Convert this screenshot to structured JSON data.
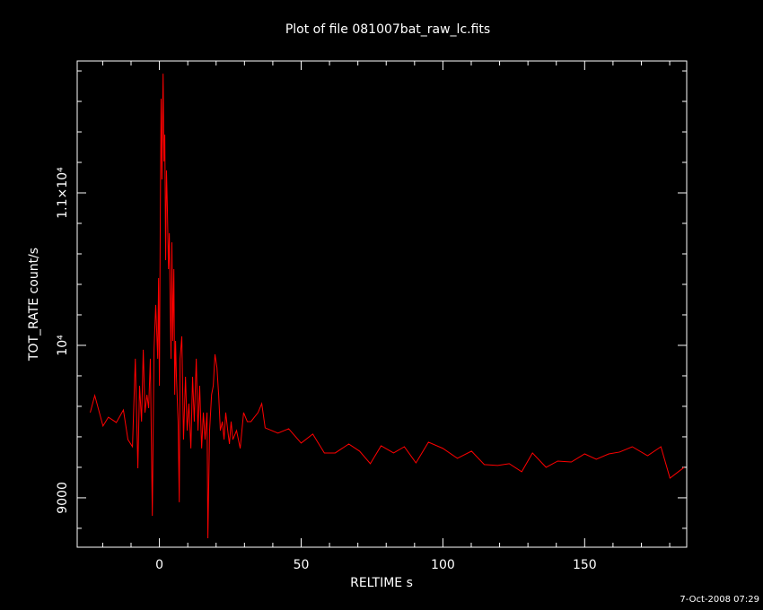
{
  "chart_data": {
    "type": "line",
    "title": "Plot of file 081007bat_raw_lc.fits",
    "x_label": "RELTIME  s",
    "y_label": "TOT_RATE  count/s",
    "timestamp": "7-Oct-2008 07:29",
    "xlim": [
      -29,
      186
    ],
    "ylim": [
      8676,
      11865
    ],
    "xticks": [
      0,
      50,
      100,
      150
    ],
    "yticks": [
      9000,
      {
        "value": 10000,
        "label": "10⁴"
      },
      {
        "value": 11000,
        "label": "1.1×10⁴"
      }
    ],
    "xminorticks": [
      -20,
      -10,
      10,
      20,
      30,
      40,
      60,
      70,
      80,
      90,
      110,
      120,
      130,
      140,
      160,
      170,
      180
    ],
    "yminorticks": [
      8800,
      9200,
      9400,
      9600,
      9800,
      10200,
      10400,
      10600,
      10800,
      11200,
      11400,
      11600,
      11800
    ],
    "series": [
      {
        "color": "#ff0000",
        "x": [
          -24.4,
          -22.8,
          -19.9,
          -18.0,
          -15.2,
          -12.7,
          -11.1,
          -9.5,
          -8.5,
          -7.6,
          -7.0,
          -6.3,
          -5.7,
          -5.1,
          -4.4,
          -3.8,
          -3.2,
          -2.5,
          -1.9,
          -1.3,
          -0.6,
          -0.3,
          0,
          0.3,
          0.6,
          0.9,
          1.3,
          1.6,
          1.9,
          2.2,
          2.5,
          2.8,
          3.2,
          3.5,
          3.8,
          4.1,
          4.4,
          4.7,
          5.1,
          5.4,
          5.7,
          6.0,
          6.6,
          7.0,
          7.3,
          7.9,
          8.5,
          9.2,
          9.8,
          10.4,
          11.1,
          11.7,
          12.3,
          13.0,
          13.6,
          14.2,
          14.9,
          15.5,
          16.1,
          16.8,
          17.1,
          17.7,
          18.4,
          19.0,
          19.6,
          20.3,
          20.9,
          21.5,
          22.2,
          22.8,
          23.4,
          24.1,
          24.7,
          25.3,
          25.9,
          27.2,
          28.5,
          29.7,
          31.0,
          32.3,
          33.5,
          34.8,
          36.1,
          37.3,
          41.8,
          45.6,
          50,
          54.1,
          58.2,
          62.0,
          66.8,
          70.6,
          74.4,
          78.2,
          82.6,
          86.4,
          90.5,
          94.9,
          100,
          105.1,
          110.1,
          114.6,
          119.3,
          123.4,
          127.8,
          131.6,
          136.4,
          140.5,
          145.3,
          150,
          154.1,
          158.5,
          162.3,
          166.8,
          172.2,
          176.9,
          180.1,
          185.1
        ],
        "values": [
          9559,
          9671,
          9471,
          9529,
          9494,
          9576,
          9382,
          9335,
          9912,
          9194,
          9735,
          9500,
          9971,
          9559,
          9676,
          9588,
          9912,
          8882,
          9971,
          10265,
          9912,
          10441,
          9735,
          10794,
          11618,
          11088,
          11782,
          11206,
          11382,
          10559,
          11147,
          10912,
          10500,
          10735,
          10265,
          9912,
          10676,
          10029,
          10500,
          9676,
          10029,
          9794,
          9500,
          8971,
          9912,
          10059,
          9382,
          9794,
          9441,
          9618,
          9324,
          9794,
          9500,
          9912,
          9441,
          9735,
          9324,
          9559,
          9382,
          9559,
          8735,
          9441,
          9676,
          9735,
          9941,
          9853,
          9676,
          9441,
          9500,
          9382,
          9559,
          9441,
          9353,
          9500,
          9382,
          9441,
          9324,
          9559,
          9500,
          9500,
          9529,
          9559,
          9618,
          9459,
          9424,
          9453,
          9359,
          9418,
          9294,
          9294,
          9353,
          9306,
          9224,
          9341,
          9294,
          9335,
          9229,
          9365,
          9324,
          9259,
          9306,
          9218,
          9212,
          9224,
          9171,
          9294,
          9200,
          9241,
          9235,
          9288,
          9253,
          9288,
          9300,
          9335,
          9276,
          9335,
          9129,
          9200
        ]
      }
    ]
  }
}
